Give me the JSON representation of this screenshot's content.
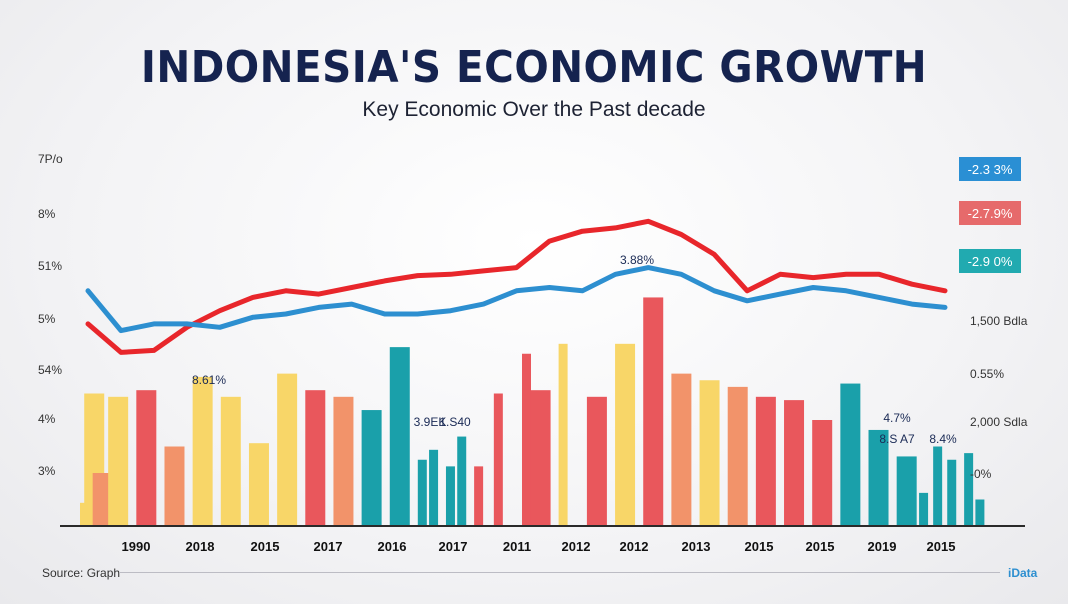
{
  "title": "INDONESIA'S ECONOMIC GROWTH",
  "subtitle": "Key Economic Over  the Past decade",
  "source": "Source: Graph",
  "brand": "iData",
  "chart_data": {
    "type": "bar",
    "title": "INDONESIA'S ECONOMIC GROWTH",
    "subtitle": "Key Economic Over  the Past decade",
    "y_ticks_left": [
      "7P/o",
      "8%",
      "51%",
      "5%",
      "54%",
      "4%",
      "3%"
    ],
    "y_ticks_right": [
      "1,500 Bdla",
      "0.55%",
      "2,000 Sdla",
      "-0%"
    ],
    "ylim": [
      2,
      7.6
    ],
    "x_labels": [
      "1990",
      "2018",
      "2015",
      "2017",
      "2016",
      "2017",
      "2011",
      "2012",
      "2012",
      "2013",
      "2015",
      "2015",
      "2019",
      "2015"
    ],
    "colors": {
      "red_line": "#e8262b",
      "blue_line": "#2d8fd0",
      "bar_yellow": "#f8d668",
      "bar_red": "#e9575c",
      "bar_orange": "#f2936a",
      "bar_teal": "#1aa0aa",
      "badge_blue": "#2a8fd4",
      "badge_red": "#e66a6b",
      "badge_teal": "#21aab0"
    },
    "series": [
      {
        "type": "line",
        "color": "red_line",
        "x": [
          0,
          1,
          2,
          3,
          4,
          5,
          6,
          7,
          8,
          9,
          10,
          11,
          12,
          13,
          14,
          15,
          16,
          17,
          18,
          19,
          20,
          21,
          22,
          23,
          24,
          25,
          26
        ],
        "values": [
          5.05,
          4.62,
          4.65,
          5.0,
          5.25,
          5.45,
          5.55,
          5.5,
          5.6,
          5.7,
          5.78,
          5.8,
          5.85,
          5.9,
          6.3,
          6.45,
          6.5,
          6.6,
          6.4,
          6.1,
          5.55,
          5.8,
          5.75,
          5.8,
          5.8,
          5.65,
          5.55
        ]
      },
      {
        "type": "line",
        "color": "blue_line",
        "x": [
          0,
          0.5,
          1,
          2,
          3,
          4,
          5,
          6,
          7,
          8,
          9,
          10,
          11,
          12,
          13,
          14,
          15,
          16,
          17,
          18,
          19,
          20,
          21,
          22,
          23,
          24,
          25,
          26
        ],
        "values": [
          5.55,
          5.25,
          4.95,
          5.05,
          5.05,
          5.0,
          5.15,
          5.2,
          5.3,
          5.35,
          5.2,
          5.2,
          5.25,
          5.35,
          5.55,
          5.6,
          5.55,
          5.8,
          5.9,
          5.8,
          5.55,
          5.4,
          5.5,
          5.6,
          5.55,
          5.45,
          5.35,
          5.3
        ]
      }
    ],
    "bars": [
      {
        "x": 0,
        "value": 2.35,
        "color": "bar_yellow"
      },
      {
        "x": 0.15,
        "value": 4.0,
        "color": "bar_yellow"
      },
      {
        "x": 0.3,
        "value": 2.3,
        "color": "bar_yellow"
      },
      {
        "x": 0.45,
        "value": 2.8,
        "color": "bar_orange"
      },
      {
        "x": 1,
        "value": 3.95,
        "color": "bar_yellow"
      },
      {
        "x": 2,
        "value": 4.05,
        "color": "bar_red"
      },
      {
        "x": 3,
        "value": 3.2,
        "color": "bar_orange"
      },
      {
        "x": 4,
        "value": 4.25,
        "color": "bar_yellow"
      },
      {
        "x": 5,
        "value": 3.95,
        "color": "bar_yellow"
      },
      {
        "x": 6,
        "value": 3.25,
        "color": "bar_yellow"
      },
      {
        "x": 7,
        "value": 4.3,
        "color": "bar_yellow"
      },
      {
        "x": 8,
        "value": 4.05,
        "color": "bar_red"
      },
      {
        "x": 9,
        "value": 3.95,
        "color": "bar_orange"
      },
      {
        "x": 10,
        "value": 3.75,
        "color": "bar_teal"
      },
      {
        "x": 11,
        "value": 4.7,
        "color": "bar_teal"
      },
      {
        "x": 11.8,
        "value": 3.0,
        "color": "bar_teal"
      },
      {
        "x": 12.2,
        "value": 3.15,
        "color": "bar_teal"
      },
      {
        "x": 12.8,
        "value": 2.9,
        "color": "bar_teal"
      },
      {
        "x": 13.2,
        "value": 3.35,
        "color": "bar_teal"
      },
      {
        "x": 13.8,
        "value": 2.9,
        "color": "bar_red"
      },
      {
        "x": 14.5,
        "value": 4.0,
        "color": "bar_red"
      },
      {
        "x": 15.5,
        "value": 4.6,
        "color": "bar_red"
      },
      {
        "x": 16,
        "value": 4.05,
        "color": "bar_red"
      },
      {
        "x": 16.8,
        "value": 4.75,
        "color": "bar_yellow"
      },
      {
        "x": 18,
        "value": 3.95,
        "color": "bar_red"
      },
      {
        "x": 19,
        "value": 4.75,
        "color": "bar_yellow"
      },
      {
        "x": 20,
        "value": 5.45,
        "color": "bar_red"
      },
      {
        "x": 21,
        "value": 4.3,
        "color": "bar_orange"
      },
      {
        "x": 22,
        "value": 4.2,
        "color": "bar_yellow"
      },
      {
        "x": 23,
        "value": 4.1,
        "color": "bar_orange"
      },
      {
        "x": 24,
        "value": 3.95,
        "color": "bar_red"
      },
      {
        "x": 25,
        "value": 3.9,
        "color": "bar_red"
      },
      {
        "x": 26,
        "value": 3.6,
        "color": "bar_red"
      },
      {
        "x": 27,
        "value": 4.15,
        "color": "bar_teal"
      },
      {
        "x": 28,
        "value": 3.45,
        "color": "bar_teal"
      },
      {
        "x": 29,
        "value": 3.05,
        "color": "bar_teal"
      },
      {
        "x": 29.6,
        "value": 2.5,
        "color": "bar_teal"
      },
      {
        "x": 30.1,
        "value": 3.2,
        "color": "bar_teal"
      },
      {
        "x": 30.6,
        "value": 3.0,
        "color": "bar_teal"
      },
      {
        "x": 31.2,
        "value": 3.1,
        "color": "bar_teal"
      },
      {
        "x": 31.6,
        "value": 2.4,
        "color": "bar_teal"
      }
    ],
    "annotations": [
      {
        "text": "8.61%",
        "x": 4
      },
      {
        "text": "3.9EK",
        "x": 11.8
      },
      {
        "text": "1.S40",
        "x": 13.2
      },
      {
        "text": "3.88%",
        "x": 20
      },
      {
        "text": "4.7%",
        "x": 30.1
      },
      {
        "text": "8.S A7",
        "x": 30.1
      },
      {
        "text": "8.4%",
        "x": 31.2
      }
    ],
    "badges": [
      {
        "text": "-2.3 3%",
        "color": "badge_blue"
      },
      {
        "text": "-2.7.9%",
        "color": "badge_red"
      },
      {
        "text": "-2.9 0%",
        "color": "badge_teal"
      }
    ],
    "grid": false,
    "legend": "none"
  }
}
